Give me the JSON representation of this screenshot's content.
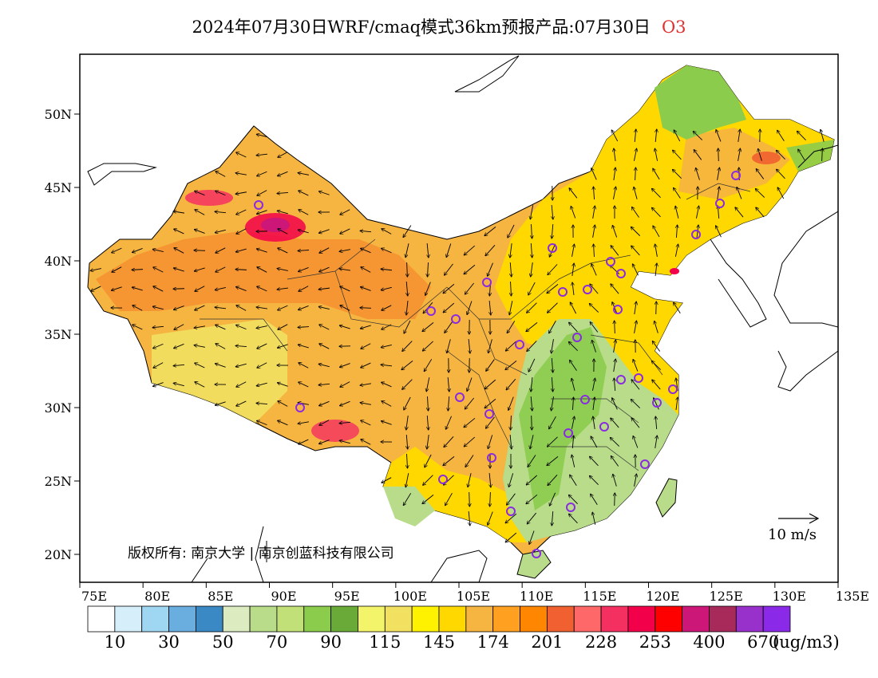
{
  "title": {
    "main": "2024年07月30日WRF/cmaq模式36km预报产品:07月30日",
    "pollutant": "O3"
  },
  "axes": {
    "lon_labels": [
      "75E",
      "80E",
      "85E",
      "90E",
      "95E",
      "100E",
      "105E",
      "110E",
      "115E",
      "120E",
      "125E",
      "130E",
      "135E"
    ],
    "lat_labels": [
      "50N",
      "45N",
      "40N",
      "35N",
      "30N",
      "25N",
      "20N"
    ]
  },
  "colorbar": {
    "labels": [
      "10",
      "30",
      "50",
      "70",
      "90",
      "115",
      "145",
      "174",
      "201",
      "228",
      "253",
      "400",
      "670"
    ],
    "unit": "(ug/m3)",
    "colors": [
      "#ffffff",
      "#d6eefa",
      "#9fd6f2",
      "#6aaee0",
      "#3a88c4",
      "#dcecc0",
      "#b8dc8a",
      "#c2e078",
      "#8ccc4c",
      "#6aaa38",
      "#f4f46a",
      "#f2e060",
      "#fff200",
      "#ffd800",
      "#f6b440",
      "#ffa020",
      "#ff8600",
      "#f06030",
      "#ff6868",
      "#f43060",
      "#f2004a",
      "#ff0000",
      "#cc1678",
      "#a82a5a",
      "#9830cc",
      "#8a2ae8"
    ]
  },
  "wind_legend": {
    "label": "10 m/s"
  },
  "copyright": "版权所有: 南京大学 | 南京创蓝科技有限公司",
  "colors": {
    "station_marker": "#8a2be2",
    "frame": "#000000"
  }
}
